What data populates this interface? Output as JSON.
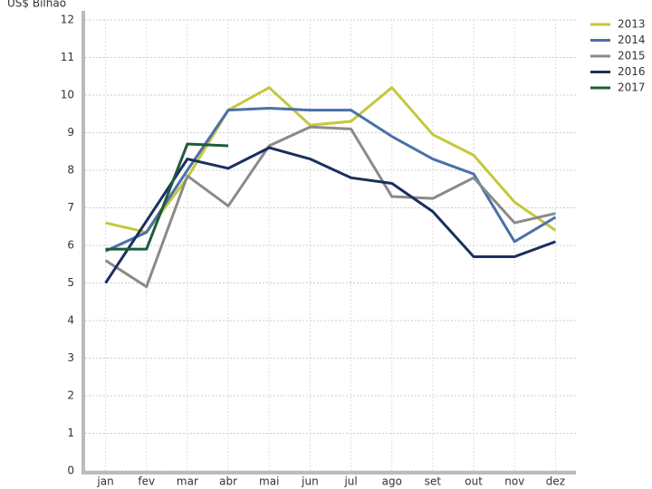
{
  "chart_data": {
    "type": "line",
    "y_label": "US$ Bilhão",
    "categories": [
      "jan",
      "fev",
      "mar",
      "abr",
      "mai",
      "jun",
      "jul",
      "ago",
      "set",
      "out",
      "nov",
      "dez"
    ],
    "series": [
      {
        "name": "2013",
        "color": "#c5c83a",
        "values": [
          6.6,
          6.35,
          7.8,
          9.6,
          10.2,
          9.2,
          9.3,
          10.2,
          8.95,
          8.4,
          7.15,
          6.4
        ]
      },
      {
        "name": "2014",
        "color": "#4a70a8",
        "values": [
          5.85,
          6.35,
          8.0,
          9.6,
          9.65,
          9.6,
          9.6,
          8.9,
          8.3,
          7.9,
          6.1,
          6.75
        ]
      },
      {
        "name": "2015",
        "color": "#8a8a8a",
        "values": [
          5.6,
          4.9,
          7.85,
          7.05,
          8.65,
          9.15,
          9.1,
          7.3,
          7.25,
          7.8,
          6.6,
          6.85
        ]
      },
      {
        "name": "2016",
        "color": "#1a2f5e",
        "values": [
          5.0,
          6.65,
          8.3,
          8.05,
          8.6,
          8.3,
          7.8,
          7.65,
          6.9,
          5.7,
          5.7,
          6.1
        ]
      },
      {
        "name": "2017",
        "color": "#1d5c3a",
        "values": [
          5.9,
          5.9,
          8.7,
          8.65,
          null,
          null,
          null,
          null,
          null,
          null,
          null,
          null
        ]
      }
    ],
    "ylim": [
      0,
      12
    ],
    "yticks": [
      0,
      1,
      2,
      3,
      4,
      5,
      6,
      7,
      8,
      9,
      10,
      11,
      12
    ],
    "grid": true,
    "legend": "top-right"
  }
}
